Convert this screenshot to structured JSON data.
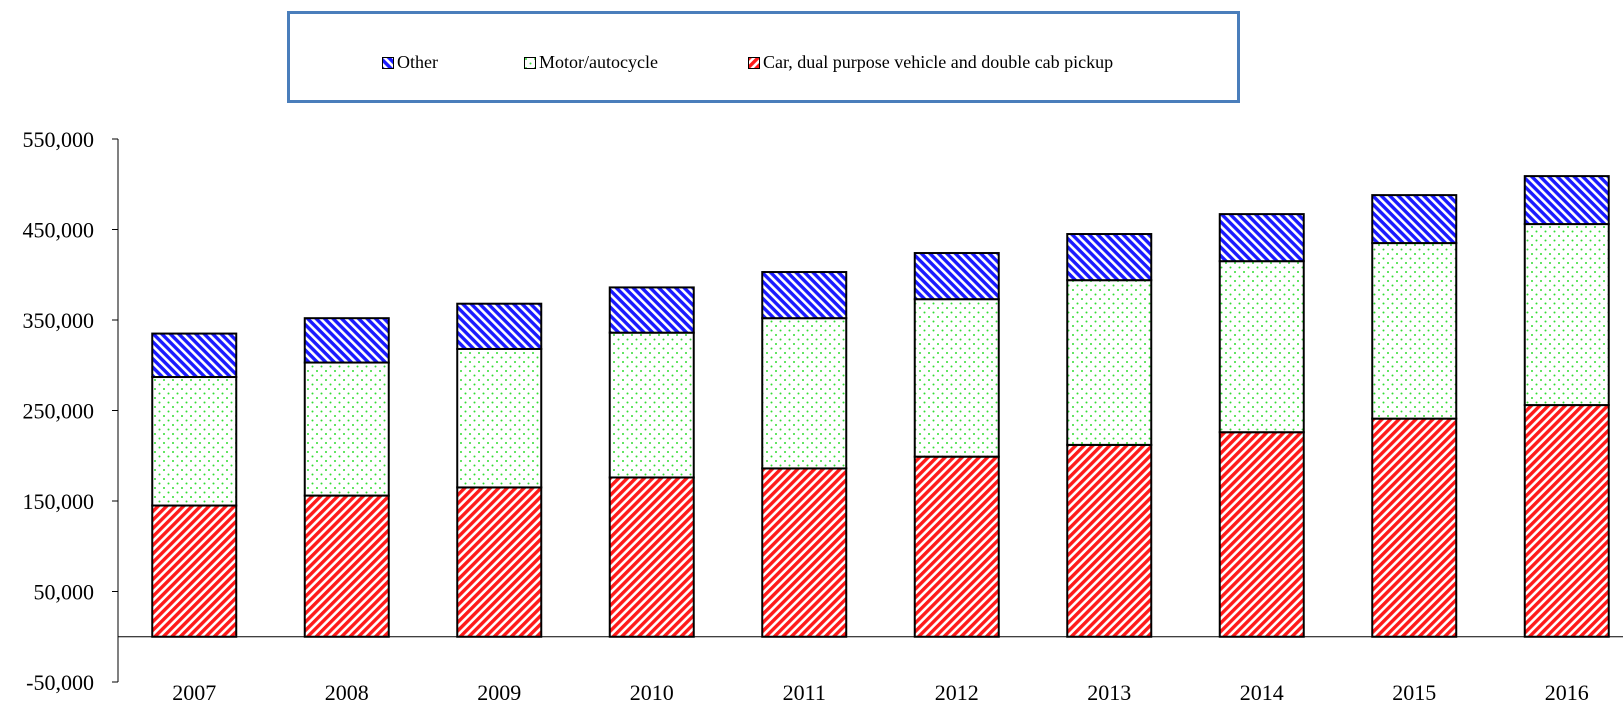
{
  "chart_data": {
    "type": "bar",
    "stacked": true,
    "categories": [
      "2007",
      "2008",
      "2009",
      "2010",
      "2011",
      "2012",
      "2013",
      "2014",
      "2015",
      "2016"
    ],
    "series": [
      {
        "name": "Car, dual purpose vehicle and double cab pickup",
        "values": [
          145000,
          156000,
          165000,
          176000,
          186000,
          199000,
          212000,
          226000,
          241000,
          256000
        ],
        "color": "#ff0000",
        "pattern": "diagonal-stripes"
      },
      {
        "name": "Motor/autocycle",
        "values": [
          142000,
          147000,
          153000,
          160000,
          166000,
          174000,
          182000,
          189000,
          194000,
          200000
        ],
        "color": "#00cc00",
        "pattern": "dots"
      },
      {
        "name": "Other",
        "values": [
          48000,
          49000,
          50000,
          50000,
          51000,
          51000,
          51000,
          52000,
          53000,
          53000
        ],
        "color": "#0000ff",
        "pattern": "diagonal-stripes"
      }
    ],
    "ylim": [
      -50000,
      550000
    ],
    "yticks": [
      "550,000",
      "450,000",
      "350,000",
      "250,000",
      "150,000",
      "50,000",
      "-50,000"
    ],
    "ytick_values": [
      550000,
      450000,
      350000,
      250000,
      150000,
      50000,
      -50000
    ],
    "legend": {
      "position": "top",
      "items": [
        "Other",
        "Motor/autocycle",
        "Car, dual purpose vehicle and double cab pickup"
      ]
    },
    "title": "",
    "xlabel": "",
    "ylabel": "",
    "grid": false
  }
}
